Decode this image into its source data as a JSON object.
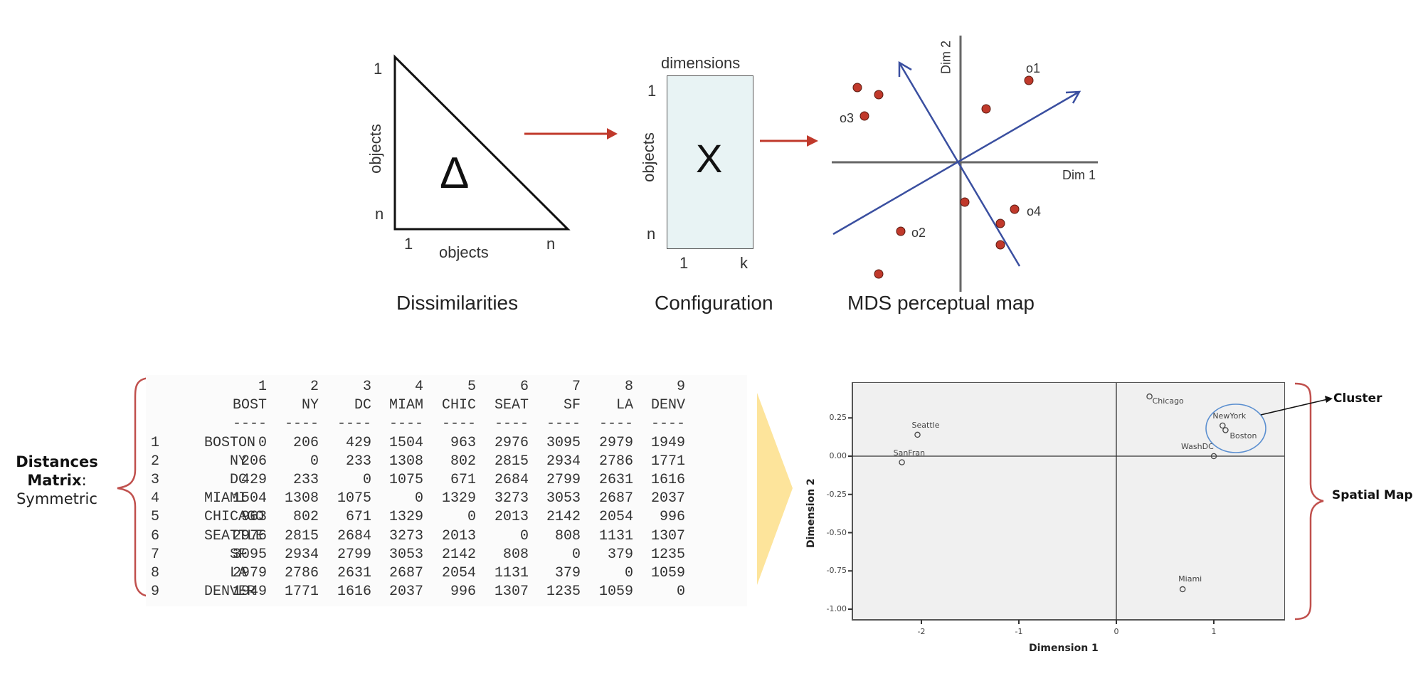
{
  "top_row": {
    "dissimilarities": {
      "symbol": "Δ",
      "y_label": "objects",
      "x_label": "objects",
      "y_top_tick": "1",
      "y_bottom_tick": "n",
      "x_left_tick": "1",
      "x_right_tick": "n",
      "caption": "Dissimilarities"
    },
    "configuration": {
      "symbol": "X",
      "top_label": "dimensions",
      "y_label": "objects",
      "y_top_tick": "1",
      "y_bottom_tick": "n",
      "x_left_tick": "1",
      "x_right_tick": "k",
      "caption": "Configuration"
    },
    "perceptual_map": {
      "x_axis_label": "Dim 1",
      "y_axis_label": "Dim 2",
      "point_labels": [
        "o1",
        "o2",
        "o3",
        "o4"
      ],
      "caption": "MDS perceptual map"
    },
    "colors": {
      "arrow": "#c0392b",
      "points": "#c0392b",
      "vectors": "#3a4fa0",
      "config_fill": "#e8f3f4"
    }
  },
  "distances_matrix": {
    "side_label_bold_1": "Distances",
    "side_label_bold_2": "Matrix",
    "side_label_colon": ":",
    "side_label_regular": "Symmetric",
    "column_numbers": [
      "1",
      "2",
      "3",
      "4",
      "5",
      "6",
      "7",
      "8",
      "9"
    ],
    "column_headers": [
      "BOST",
      "NY",
      "DC",
      "MIAM",
      "CHIC",
      "SEAT",
      "SF",
      "LA",
      "DENV"
    ],
    "rows": [
      {
        "num": "1",
        "name": "BOSTON",
        "values": [
          "0",
          "206",
          "429",
          "1504",
          "963",
          "2976",
          "3095",
          "2979",
          "1949"
        ]
      },
      {
        "num": "2",
        "name": "NY",
        "values": [
          "206",
          "0",
          "233",
          "1308",
          "802",
          "2815",
          "2934",
          "2786",
          "1771"
        ]
      },
      {
        "num": "3",
        "name": "DC",
        "values": [
          "429",
          "233",
          "0",
          "1075",
          "671",
          "2684",
          "2799",
          "2631",
          "1616"
        ]
      },
      {
        "num": "4",
        "name": "MIAMI",
        "values": [
          "1504",
          "1308",
          "1075",
          "0",
          "1329",
          "3273",
          "3053",
          "2687",
          "2037"
        ]
      },
      {
        "num": "5",
        "name": "CHICAGO",
        "values": [
          "963",
          "802",
          "671",
          "1329",
          "0",
          "2013",
          "2142",
          "2054",
          "996"
        ]
      },
      {
        "num": "6",
        "name": "SEATTLE",
        "values": [
          "2976",
          "2815",
          "2684",
          "3273",
          "2013",
          "0",
          "808",
          "1131",
          "1307"
        ]
      },
      {
        "num": "7",
        "name": "SF",
        "values": [
          "3095",
          "2934",
          "2799",
          "3053",
          "2142",
          "808",
          "0",
          "379",
          "1235"
        ]
      },
      {
        "num": "8",
        "name": "LA",
        "values": [
          "2979",
          "2786",
          "2631",
          "2687",
          "2054",
          "1131",
          "379",
          "0",
          "1059"
        ]
      },
      {
        "num": "9",
        "name": "DENVER",
        "values": [
          "1949",
          "1771",
          "1616",
          "2037",
          "996",
          "1307",
          "1235",
          "1059",
          "0"
        ]
      }
    ]
  },
  "spatial_map": {
    "cluster_label": "Cluster",
    "bracket_label": "Spatial Map",
    "cluster_circle_color": "#5b8fd0",
    "bracket_color": "#c0504d",
    "arrow_fill": "#fde49b"
  },
  "chart_data": {
    "type": "scatter",
    "title": "",
    "xlabel": "Dimension 1",
    "ylabel": "Dimension 2",
    "xlim": [
      -2.7,
      1.7
    ],
    "ylim": [
      -1.07,
      0.45
    ],
    "x_ticks": [
      "-2",
      "-1",
      "0",
      "1"
    ],
    "y_ticks": [
      "0.25",
      "0.00",
      "-0.25",
      "-0.50",
      "-0.75",
      "-1.00"
    ],
    "grid": false,
    "reference_lines": {
      "x": 0,
      "y": 0
    },
    "points": [
      {
        "label": "Seattle",
        "x": -2.04,
        "y": 0.14
      },
      {
        "label": "SanFran",
        "x": -2.2,
        "y": -0.04
      },
      {
        "label": "Chicago",
        "x": 0.34,
        "y": 0.39
      },
      {
        "label": "NewYork",
        "x": 1.09,
        "y": 0.2
      },
      {
        "label": "Boston",
        "x": 1.12,
        "y": 0.17
      },
      {
        "label": "WashDC",
        "x": 1.0,
        "y": 0.0
      },
      {
        "label": "Miami",
        "x": 0.68,
        "y": -0.87
      }
    ],
    "annotations": [
      {
        "text": "Cluster",
        "target": [
          "NewYork",
          "Boston"
        ]
      }
    ]
  }
}
